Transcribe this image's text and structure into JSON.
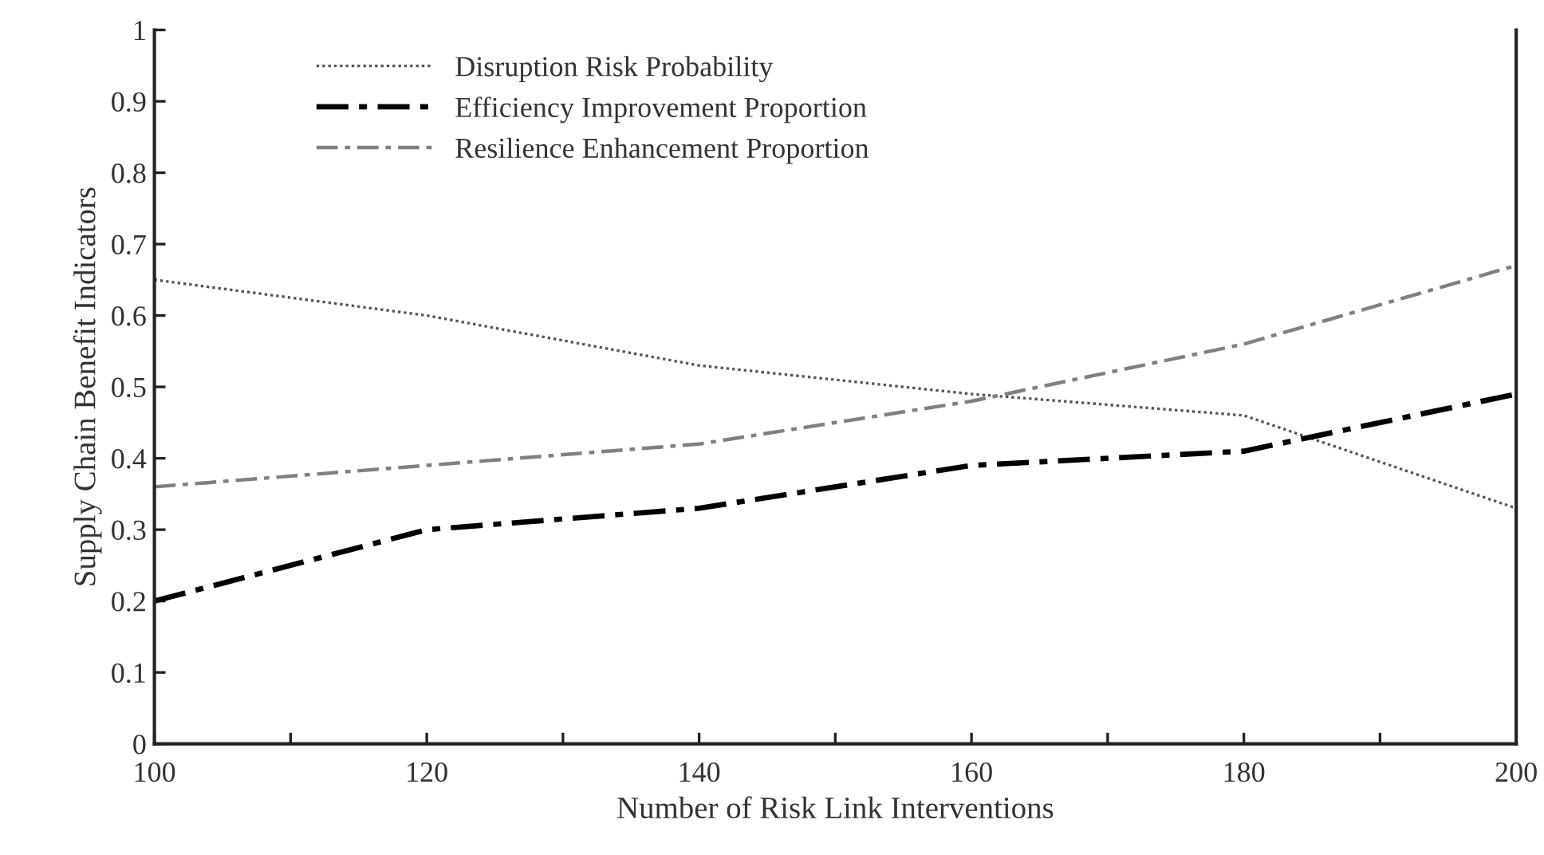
{
  "chart_data": {
    "type": "line",
    "xlabel": "Number of Risk Link Interventions",
    "ylabel": "Supply Chain Benefit Indicators",
    "x": [
      100,
      120,
      140,
      160,
      180,
      200
    ],
    "series": [
      {
        "name": "Disruption Risk Probability",
        "color": "#555555",
        "line_style": "dotted",
        "values": [
          0.65,
          0.6,
          0.53,
          0.49,
          0.46,
          0.33
        ]
      },
      {
        "name": "Efficiency Improvement Proportion",
        "color": "#000000",
        "line_style": "dashed",
        "values": [
          0.2,
          0.3,
          0.33,
          0.39,
          0.41,
          0.49
        ]
      },
      {
        "name": "Resilience Enhancement Proportion",
        "color": "#808080",
        "line_style": "dashed",
        "values": [
          0.36,
          0.39,
          0.42,
          0.48,
          0.56,
          0.67
        ]
      }
    ],
    "xlim": [
      100,
      200
    ],
    "xticks": [
      100,
      {
        "value": 110,
        "label": null
      },
      120,
      {
        "value": 130,
        "label": null
      },
      140,
      {
        "value": 150,
        "label": null
      },
      160,
      {
        "value": 170,
        "label": null
      },
      180,
      {
        "value": 190,
        "label": null
      },
      200
    ],
    "ylim": [
      0,
      1
    ],
    "yticks": [
      0,
      0.1,
      0.2,
      0.3,
      0.4,
      0.5,
      0.6,
      0.7,
      0.8,
      0.9,
      1
    ],
    "grid": false,
    "legend": "top left",
    "marker": "none"
  }
}
